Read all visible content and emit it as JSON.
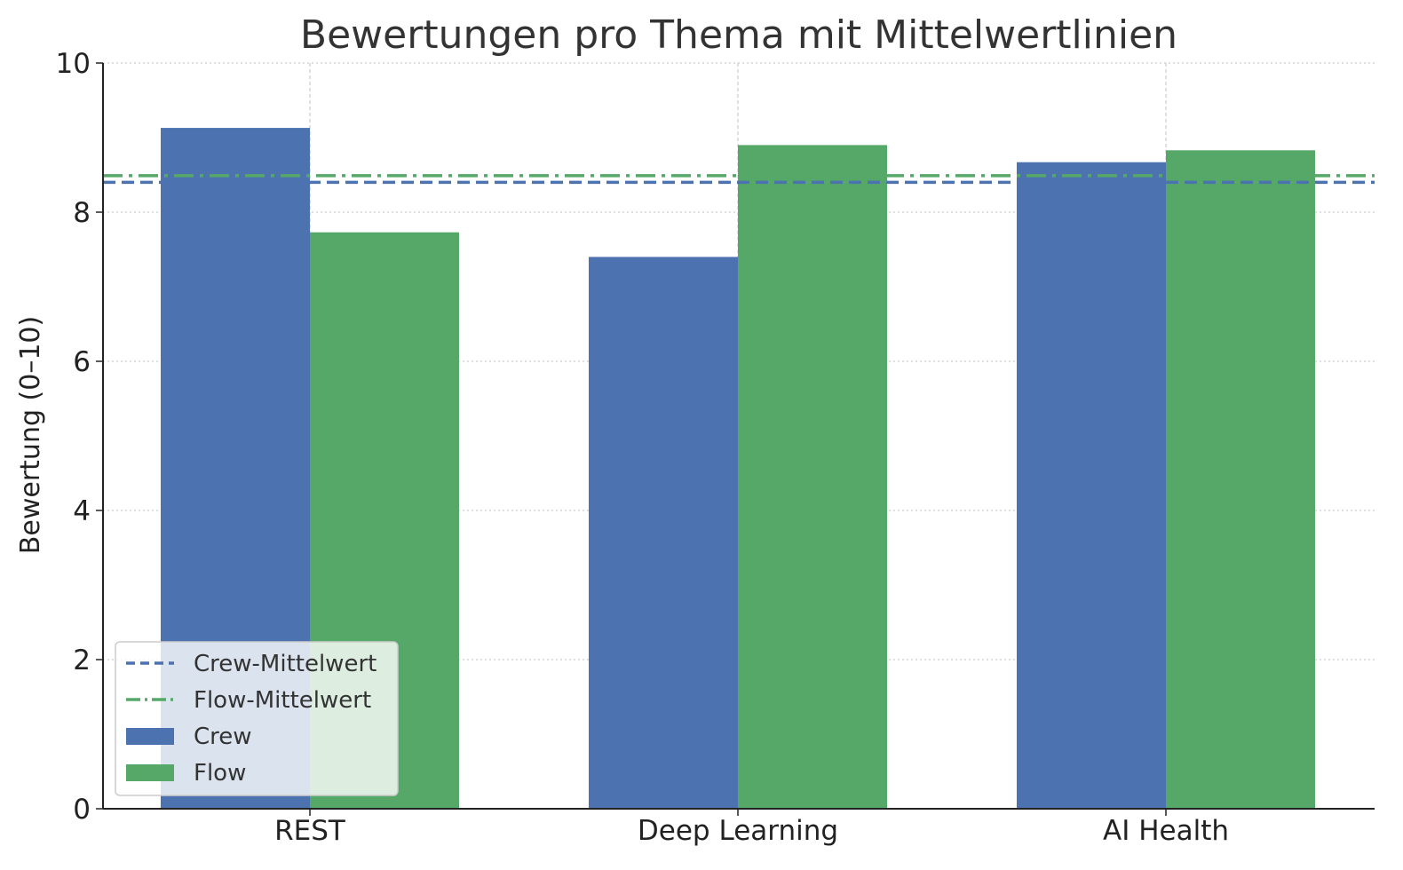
{
  "chart_data": {
    "type": "bar",
    "title": "Bewertungen pro Thema mit Mittelwertlinien",
    "xlabel": "",
    "ylabel": "Bewertung (0–10)",
    "ylim": [
      0,
      10
    ],
    "yticks": [
      "0",
      "2",
      "4",
      "6",
      "8",
      "10"
    ],
    "categories": [
      "REST",
      "Deep Learning",
      "AI Health"
    ],
    "series": [
      {
        "name": "Crew",
        "values": [
          9.13,
          7.4,
          8.67
        ],
        "color": "#4c72b0"
      },
      {
        "name": "Flow",
        "values": [
          7.73,
          8.9,
          8.83
        ],
        "color": "#55a868"
      }
    ],
    "mean_lines": [
      {
        "name": "Crew-Mittelwert",
        "value": 8.4,
        "color": "#4c72b0",
        "style": "dashed"
      },
      {
        "name": "Flow-Mittelwert",
        "value": 8.49,
        "color": "#55a868",
        "style": "dashdot"
      }
    ],
    "grid": true,
    "legend_position": "bottom-left",
    "legend": [
      "Crew-Mittelwert",
      "Flow-Mittelwert",
      "Crew",
      "Flow"
    ]
  }
}
